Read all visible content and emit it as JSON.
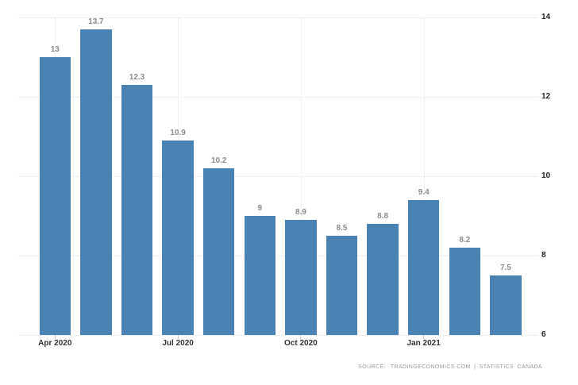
{
  "chart_data": {
    "type": "bar",
    "values": [
      13,
      13.7,
      12.3,
      10.9,
      10.2,
      9,
      8.9,
      8.5,
      8.8,
      9.4,
      8.2,
      7.5
    ],
    "bar_labels": [
      "13",
      "13.7",
      "12.3",
      "10.9",
      "10.2",
      "9",
      "8.9",
      "8.5",
      "8.8",
      "9.4",
      "8.2",
      "7.5"
    ],
    "x_ticks": [
      {
        "label": "Apr 2020",
        "bar_index": 0
      },
      {
        "label": "Jul 2020",
        "bar_index": 3
      },
      {
        "label": "Oct 2020",
        "bar_index": 6
      },
      {
        "label": "Jan 2021",
        "bar_index": 9
      }
    ],
    "y_ticks": [
      {
        "label": "14",
        "value": 14
      },
      {
        "label": "12",
        "value": 12
      },
      {
        "label": "10",
        "value": 10
      },
      {
        "label": "8",
        "value": 8
      },
      {
        "label": "6",
        "value": 6
      }
    ],
    "ylim": [
      6,
      14
    ],
    "grid": "dotted",
    "legend": "none",
    "title": "",
    "xlabel": "",
    "ylabel": "",
    "bar_color": "#4a82b4"
  },
  "footer": {
    "source_label": "SOURCE:",
    "source_text": "TRADINGECONOMICS.COM | STATISTICS CANADA"
  },
  "colors": {
    "bar": "#4a82b4",
    "grid_horizontal": "#e0e0e0",
    "grid_vertical": "#e4e4e4",
    "value_label": "#8c8c8c",
    "x_axis_label": "#333333",
    "y_axis_label": "#222222",
    "tick_mark": "#cccccc",
    "source_text": "#9a9a9a",
    "background": "#ffffff"
  }
}
